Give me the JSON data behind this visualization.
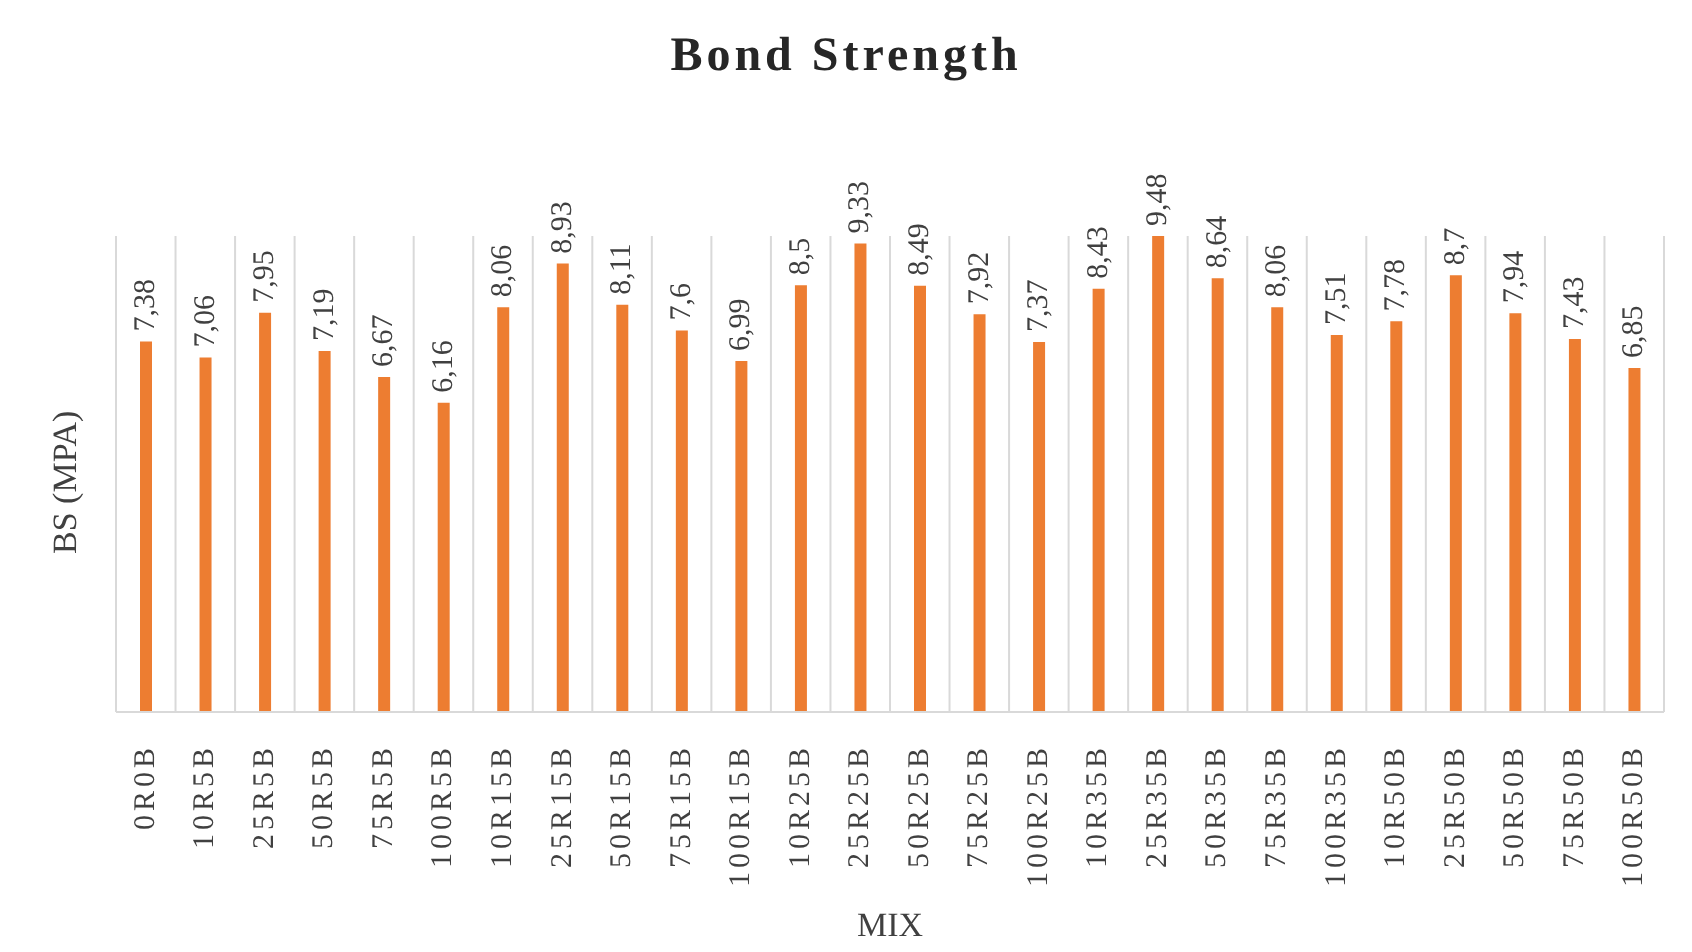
{
  "chart_data": {
    "type": "bar",
    "title": "Bond Strength",
    "xlabel": "MIX",
    "ylabel": "BS (MPA)",
    "categories": [
      "0R0B",
      "10R5B",
      "25R5B",
      "50R5B",
      "75R5B",
      "100R5B",
      "10R15B",
      "25R15B",
      "50R15B",
      "75R15B",
      "100R15B",
      "10R25B",
      "25R25B",
      "50R25B",
      "75R25B",
      "100R25B",
      "10R35B",
      "25R35B",
      "50R35B",
      "75R35B",
      "100R35B",
      "10R50B",
      "25R50B",
      "50R50B",
      "75R50B",
      "100R50B"
    ],
    "values": [
      7.38,
      7.06,
      7.95,
      7.19,
      6.67,
      6.16,
      8.06,
      8.93,
      8.11,
      7.6,
      6.99,
      8.5,
      9.33,
      8.49,
      7.92,
      7.37,
      8.43,
      9.48,
      8.64,
      8.06,
      7.51,
      7.78,
      8.7,
      7.94,
      7.43,
      6.85
    ],
    "value_labels": [
      "7,38",
      "7,06",
      "7,95",
      "7,19",
      "6,67",
      "6,16",
      "8,06",
      "8,93",
      "8,11",
      "7,6",
      "6,99",
      "8,5",
      "9,33",
      "8,49",
      "7,92",
      "7,37",
      "8,43",
      "9,48",
      "8,64",
      "8,06",
      "7,51",
      "7,78",
      "8,7",
      "7,94",
      "7,43",
      "6,85"
    ],
    "color": "#ed7d31",
    "grid": "x",
    "relative": false,
    "legend": false
  }
}
